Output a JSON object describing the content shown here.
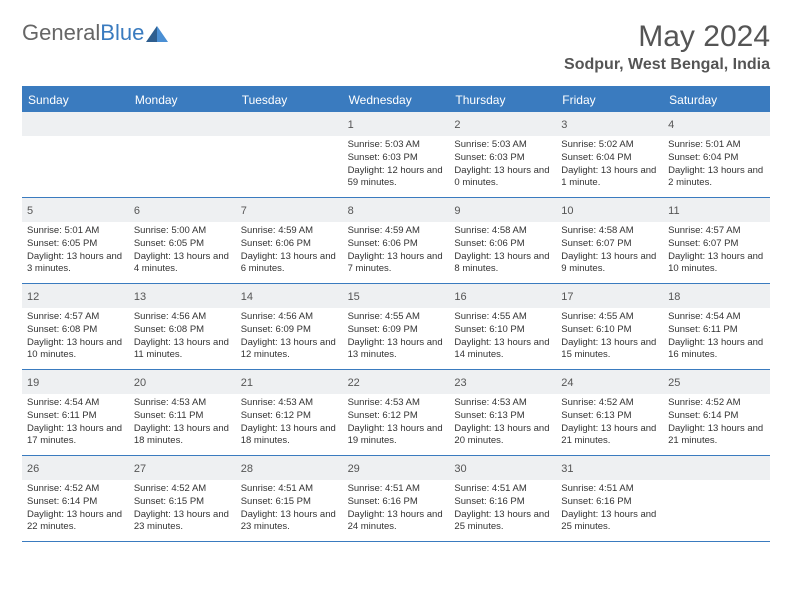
{
  "logo": {
    "text_gray": "General",
    "text_blue": "Blue"
  },
  "title": "May 2024",
  "location": "Sodpur, West Bengal, India",
  "colors": {
    "header_bg": "#3a7bbf",
    "daynum_bg": "#eef0f2",
    "text": "#333333",
    "title_text": "#555555",
    "border": "#3a7bbf"
  },
  "weekdays": [
    "Sunday",
    "Monday",
    "Tuesday",
    "Wednesday",
    "Thursday",
    "Friday",
    "Saturday"
  ],
  "weeks": [
    [
      {
        "n": "",
        "empty": true
      },
      {
        "n": "",
        "empty": true
      },
      {
        "n": "",
        "empty": true
      },
      {
        "n": "1",
        "sr": "5:03 AM",
        "ss": "6:03 PM",
        "dl": "12 hours and 59 minutes."
      },
      {
        "n": "2",
        "sr": "5:03 AM",
        "ss": "6:03 PM",
        "dl": "13 hours and 0 minutes."
      },
      {
        "n": "3",
        "sr": "5:02 AM",
        "ss": "6:04 PM",
        "dl": "13 hours and 1 minute."
      },
      {
        "n": "4",
        "sr": "5:01 AM",
        "ss": "6:04 PM",
        "dl": "13 hours and 2 minutes."
      }
    ],
    [
      {
        "n": "5",
        "sr": "5:01 AM",
        "ss": "6:05 PM",
        "dl": "13 hours and 3 minutes."
      },
      {
        "n": "6",
        "sr": "5:00 AM",
        "ss": "6:05 PM",
        "dl": "13 hours and 4 minutes."
      },
      {
        "n": "7",
        "sr": "4:59 AM",
        "ss": "6:06 PM",
        "dl": "13 hours and 6 minutes."
      },
      {
        "n": "8",
        "sr": "4:59 AM",
        "ss": "6:06 PM",
        "dl": "13 hours and 7 minutes."
      },
      {
        "n": "9",
        "sr": "4:58 AM",
        "ss": "6:06 PM",
        "dl": "13 hours and 8 minutes."
      },
      {
        "n": "10",
        "sr": "4:58 AM",
        "ss": "6:07 PM",
        "dl": "13 hours and 9 minutes."
      },
      {
        "n": "11",
        "sr": "4:57 AM",
        "ss": "6:07 PM",
        "dl": "13 hours and 10 minutes."
      }
    ],
    [
      {
        "n": "12",
        "sr": "4:57 AM",
        "ss": "6:08 PM",
        "dl": "13 hours and 10 minutes."
      },
      {
        "n": "13",
        "sr": "4:56 AM",
        "ss": "6:08 PM",
        "dl": "13 hours and 11 minutes."
      },
      {
        "n": "14",
        "sr": "4:56 AM",
        "ss": "6:09 PM",
        "dl": "13 hours and 12 minutes."
      },
      {
        "n": "15",
        "sr": "4:55 AM",
        "ss": "6:09 PM",
        "dl": "13 hours and 13 minutes."
      },
      {
        "n": "16",
        "sr": "4:55 AM",
        "ss": "6:10 PM",
        "dl": "13 hours and 14 minutes."
      },
      {
        "n": "17",
        "sr": "4:55 AM",
        "ss": "6:10 PM",
        "dl": "13 hours and 15 minutes."
      },
      {
        "n": "18",
        "sr": "4:54 AM",
        "ss": "6:11 PM",
        "dl": "13 hours and 16 minutes."
      }
    ],
    [
      {
        "n": "19",
        "sr": "4:54 AM",
        "ss": "6:11 PM",
        "dl": "13 hours and 17 minutes."
      },
      {
        "n": "20",
        "sr": "4:53 AM",
        "ss": "6:11 PM",
        "dl": "13 hours and 18 minutes."
      },
      {
        "n": "21",
        "sr": "4:53 AM",
        "ss": "6:12 PM",
        "dl": "13 hours and 18 minutes."
      },
      {
        "n": "22",
        "sr": "4:53 AM",
        "ss": "6:12 PM",
        "dl": "13 hours and 19 minutes."
      },
      {
        "n": "23",
        "sr": "4:53 AM",
        "ss": "6:13 PM",
        "dl": "13 hours and 20 minutes."
      },
      {
        "n": "24",
        "sr": "4:52 AM",
        "ss": "6:13 PM",
        "dl": "13 hours and 21 minutes."
      },
      {
        "n": "25",
        "sr": "4:52 AM",
        "ss": "6:14 PM",
        "dl": "13 hours and 21 minutes."
      }
    ],
    [
      {
        "n": "26",
        "sr": "4:52 AM",
        "ss": "6:14 PM",
        "dl": "13 hours and 22 minutes."
      },
      {
        "n": "27",
        "sr": "4:52 AM",
        "ss": "6:15 PM",
        "dl": "13 hours and 23 minutes."
      },
      {
        "n": "28",
        "sr": "4:51 AM",
        "ss": "6:15 PM",
        "dl": "13 hours and 23 minutes."
      },
      {
        "n": "29",
        "sr": "4:51 AM",
        "ss": "6:16 PM",
        "dl": "13 hours and 24 minutes."
      },
      {
        "n": "30",
        "sr": "4:51 AM",
        "ss": "6:16 PM",
        "dl": "13 hours and 25 minutes."
      },
      {
        "n": "31",
        "sr": "4:51 AM",
        "ss": "6:16 PM",
        "dl": "13 hours and 25 minutes."
      },
      {
        "n": "",
        "empty": true
      }
    ]
  ],
  "labels": {
    "sunrise": "Sunrise:",
    "sunset": "Sunset:",
    "daylight": "Daylight:"
  }
}
